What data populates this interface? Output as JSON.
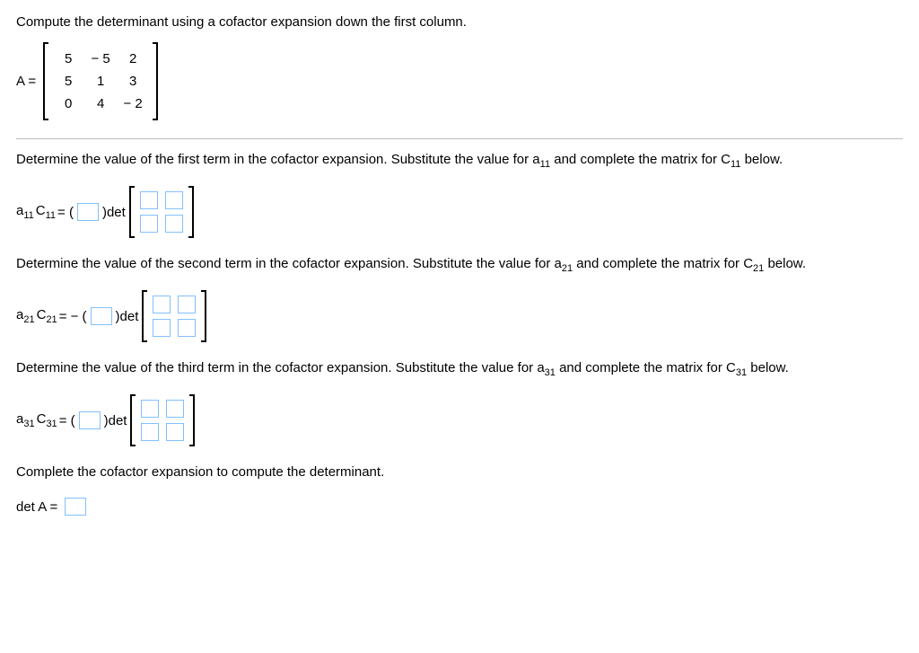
{
  "title": "Compute the determinant using a cofactor expansion down the first column.",
  "matrix_label": "A =",
  "matrix": {
    "rows": [
      [
        "5",
        "− 5",
        "2"
      ],
      [
        "5",
        "1",
        "3"
      ],
      [
        "0",
        "4",
        "− 2"
      ]
    ]
  },
  "step1": {
    "instruction": "Determine the value of the first term in the cofactor expansion. Substitute the value for a",
    "sub1": "11",
    "instruction_mid": " and complete the matrix for C",
    "sub2": "11",
    "instruction_end": " below.",
    "lhs_a": "a",
    "lhs_a_sub": "11",
    "lhs_c": "C",
    "lhs_c_sub": "11",
    "eq": " = (",
    "after_box": ")det"
  },
  "step2": {
    "instruction": "Determine the value of the second term in the cofactor expansion. Substitute the value for a",
    "sub1": "21",
    "instruction_mid": " and complete the matrix for C",
    "sub2": "21",
    "instruction_end": " below.",
    "lhs_a": "a",
    "lhs_a_sub": "21",
    "lhs_c": "C",
    "lhs_c_sub": "21",
    "eq": " = − (",
    "after_box": ")det"
  },
  "step3": {
    "instruction": "Determine the value of the third term in the cofactor expansion. Substitute the value for a",
    "sub1": "31",
    "instruction_mid": " and complete the matrix for C",
    "sub2": "31",
    "instruction_end": " below.",
    "lhs_a": "a",
    "lhs_a_sub": "31",
    "lhs_c": "C",
    "lhs_c_sub": "31",
    "eq": " = (",
    "after_box": ")det"
  },
  "final": {
    "instruction": "Complete the cofactor expansion to compute the determinant.",
    "label": "det A ="
  },
  "colors": {
    "input_border": "#82c0ff",
    "rule": "#bbbbbb",
    "text": "#000000",
    "background": "#ffffff"
  }
}
